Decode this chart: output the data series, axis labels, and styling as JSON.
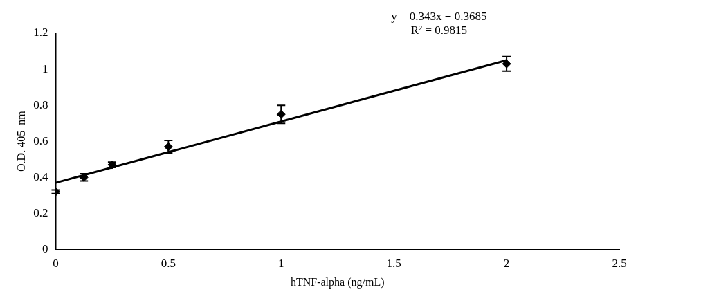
{
  "chart_data": {
    "type": "scatter",
    "xlabel": "hTNF-alpha (ng/mL)",
    "ylabel": "O.D. 405  nm",
    "annotations": [
      "y = 0.343x + 0.3685",
      "R² = 0.9815"
    ],
    "x": [
      0,
      0.125,
      0.25,
      0.5,
      1,
      2
    ],
    "series": [
      {
        "color": "#000000",
        "marker": "diamond",
        "values": [
          0.32,
          0.4,
          0.47,
          0.57,
          0.75,
          1.03
        ],
        "errors": [
          0.01,
          0.02,
          0.015,
          0.035,
          0.05,
          0.04
        ]
      },
      {
        "type": "line",
        "color": "#000000",
        "marker": "none",
        "x": [
          0,
          2
        ],
        "values": [
          0.37,
          1.05
        ]
      }
    ],
    "xlim": [
      0,
      2.5
    ],
    "xticks": [
      0,
      0.5,
      1,
      1.5,
      2,
      2.5
    ],
    "ylim": [
      0,
      1.2
    ],
    "yticks": [
      0,
      0.2,
      0.4,
      0.6,
      0.8,
      1,
      1.2
    ],
    "grid": false,
    "legend": false
  }
}
